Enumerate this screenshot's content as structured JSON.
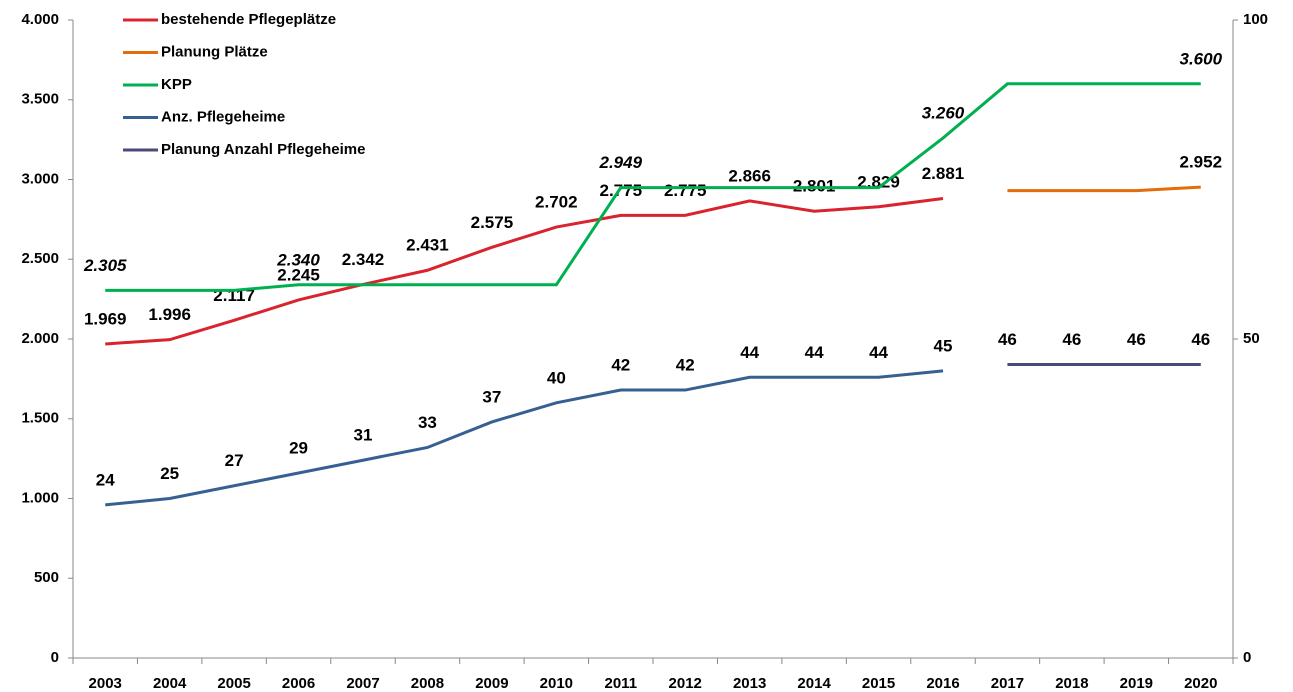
{
  "chart_data": {
    "type": "line",
    "categories": [
      "2003",
      "2004",
      "2005",
      "2006",
      "2007",
      "2008",
      "2009",
      "2010",
      "2011",
      "2012",
      "2013",
      "2014",
      "2015",
      "2016",
      "2017",
      "2018",
      "2019",
      "2020"
    ],
    "series": [
      {
        "name": "bestehende Pflegeplätze",
        "color": "#d9232d",
        "values": [
          1969,
          1996,
          2117,
          2245,
          2342,
          2431,
          2575,
          2702,
          2775,
          2775,
          2866,
          2801,
          2829,
          2881,
          null,
          null,
          null,
          null
        ],
        "value_labels": [
          "1.969",
          "1.996",
          "2.117",
          "2.245",
          "2.342",
          "2.431",
          "2.575",
          "2.702",
          "2.775",
          "2.775",
          "2.866",
          "2.801",
          "2.829",
          "2.881",
          null,
          null,
          null,
          null
        ]
      },
      {
        "name": "Planung Plätze",
        "color": "#e46c0a",
        "values": [
          null,
          null,
          null,
          null,
          null,
          null,
          null,
          null,
          null,
          null,
          null,
          null,
          null,
          null,
          2930,
          2930,
          2930,
          2952
        ],
        "value_labels": [
          null,
          null,
          null,
          null,
          null,
          null,
          null,
          null,
          null,
          null,
          null,
          null,
          null,
          null,
          null,
          null,
          null,
          "2.952"
        ]
      },
      {
        "name": "KPP",
        "color": "#00b050",
        "values": [
          2305,
          2305,
          2305,
          2340,
          2340,
          2340,
          2340,
          2340,
          2949,
          2949,
          2949,
          2949,
          2949,
          3260,
          3600,
          3600,
          3600,
          3600
        ],
        "value_labels": [
          "2.305",
          null,
          null,
          "2.340",
          null,
          null,
          null,
          null,
          "2.949",
          null,
          null,
          null,
          null,
          "3.260",
          null,
          null,
          null,
          "3.600"
        ]
      },
      {
        "name": "Anz. Pflegeheime",
        "color": "#376092",
        "axis": "y2",
        "values": [
          24,
          25,
          27,
          29,
          31,
          33,
          37,
          40,
          42,
          42,
          44,
          44,
          44,
          45,
          null,
          null,
          null,
          null
        ]
      },
      {
        "name": "Planung Anzahl Pflegeheime",
        "color": "#4a4a78",
        "axis": "y2",
        "values": [
          null,
          null,
          null,
          null,
          null,
          null,
          null,
          null,
          null,
          null,
          null,
          null,
          null,
          null,
          46,
          46,
          46,
          46
        ]
      }
    ],
    "ylim": [
      0,
      4000
    ],
    "yticks": [
      0,
      500,
      {
        "value": 1000,
        "label": "1.000"
      },
      {
        "value": 1500,
        "label": "1.500"
      },
      {
        "value": 2000,
        "label": "2.000"
      },
      {
        "value": 2500,
        "label": "2.500"
      },
      {
        "value": 3000,
        "label": "3.000"
      },
      {
        "value": 3500,
        "label": "3.500"
      },
      {
        "value": 4000,
        "label": "4.000"
      }
    ],
    "y2lim": [
      0,
      100
    ],
    "y2ticks": [
      0,
      50,
      100
    ],
    "legend": "top-left"
  }
}
